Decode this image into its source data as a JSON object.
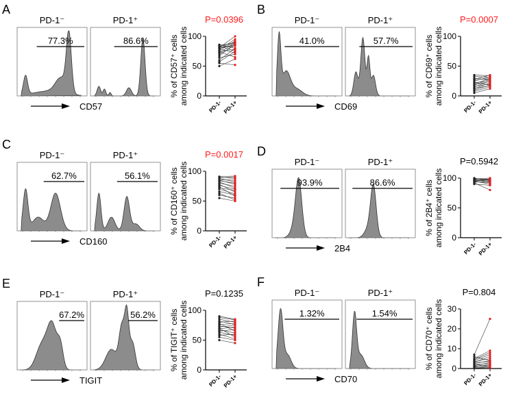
{
  "colors": {
    "significant": "#ff1a1a",
    "ns": "#000000",
    "pos_point": "#e41a1c",
    "neg_point": "#222222",
    "fill": "#8c8c8c"
  },
  "chart_data": [
    {
      "type": "paired-scatter",
      "letter": "A",
      "marker": "CD57",
      "groups": [
        "PD-1-",
        "PD-1+"
      ],
      "hist_titles": [
        "PD-1⁻",
        "PD-1⁺"
      ],
      "gate_pct": [
        "77.3%",
        "86.6%"
      ],
      "ylabel": [
        "% of CD57⁺ cells",
        "among indicated cells"
      ],
      "yticks": [
        0,
        50,
        100
      ],
      "ylim": [
        0,
        100
      ],
      "p_value": "P=0.0396",
      "significant": true,
      "hist": [
        [
          [
            0.12,
            0.03,
            0.28
          ],
          [
            0.45,
            0.22,
            0.07
          ],
          [
            0.63,
            0.08,
            0.22
          ],
          [
            0.74,
            0.035,
            0.85
          ]
        ],
        [
          [
            0.12,
            0.025,
            0.14
          ],
          [
            0.2,
            0.02,
            0.1
          ],
          [
            0.28,
            0.015,
            0.05
          ],
          [
            0.55,
            0.035,
            0.12
          ],
          [
            0.75,
            0.03,
            0.85
          ]
        ]
      ],
      "pairs": [
        [
          50,
          62
        ],
        [
          55,
          52
        ],
        [
          57,
          75
        ],
        [
          60,
          80
        ],
        [
          64,
          70
        ],
        [
          67,
          88
        ],
        [
          70,
          85
        ],
        [
          72,
          90
        ],
        [
          74,
          65
        ],
        [
          75,
          78
        ],
        [
          76,
          92
        ],
        [
          78,
          95
        ],
        [
          79,
          72
        ],
        [
          80,
          86
        ],
        [
          81,
          100
        ],
        [
          82,
          84
        ],
        [
          83,
          90
        ],
        [
          84,
          75
        ],
        [
          85,
          88
        ],
        [
          86,
          80
        ]
      ]
    },
    {
      "type": "paired-scatter",
      "letter": "B",
      "marker": "CD69",
      "groups": [
        "PD-1-",
        "PD-1+"
      ],
      "hist_titles": [
        "PD-1⁻",
        "PD-1⁺"
      ],
      "gate_pct": [
        "41.0%",
        "57.7%"
      ],
      "ylabel": [
        "% of CD69⁺ cells",
        "among indicated cells"
      ],
      "yticks": [
        0,
        50,
        100
      ],
      "ylim": [
        0,
        100
      ],
      "p_value": "P=0.0007",
      "significant": true,
      "hist": [
        [
          [
            0.1,
            0.025,
            0.85
          ],
          [
            0.2,
            0.06,
            0.35
          ],
          [
            0.35,
            0.08,
            0.1
          ]
        ],
        [
          [
            0.15,
            0.03,
            0.35
          ],
          [
            0.25,
            0.03,
            0.85
          ],
          [
            0.33,
            0.02,
            0.55
          ],
          [
            0.4,
            0.03,
            0.3
          ]
        ]
      ],
      "pairs": [
        [
          5,
          12
        ],
        [
          8,
          15
        ],
        [
          10,
          18
        ],
        [
          12,
          22
        ],
        [
          13,
          17
        ],
        [
          15,
          25
        ],
        [
          16,
          20
        ],
        [
          18,
          28
        ],
        [
          19,
          24
        ],
        [
          20,
          30
        ],
        [
          22,
          26
        ],
        [
          23,
          18
        ],
        [
          25,
          32
        ],
        [
          27,
          29
        ],
        [
          28,
          35
        ],
        [
          30,
          27
        ],
        [
          33,
          31
        ],
        [
          35,
          34
        ]
      ]
    },
    {
      "type": "paired-scatter",
      "letter": "C",
      "marker": "CD160",
      "groups": [
        "PD-1-",
        "PD-1+"
      ],
      "hist_titles": [
        "PD-1⁻",
        "PD-1⁺"
      ],
      "gate_pct": [
        "62.7%",
        "56.1%"
      ],
      "ylabel": [
        "% of CD160⁺ cells",
        "among indicated cells"
      ],
      "yticks": [
        0,
        50,
        100
      ],
      "ylim": [
        0,
        100
      ],
      "p_value": "P=0.0017",
      "significant": true,
      "hist": [
        [
          [
            0.12,
            0.035,
            0.6
          ],
          [
            0.3,
            0.08,
            0.2
          ],
          [
            0.55,
            0.07,
            0.55
          ]
        ],
        [
          [
            0.12,
            0.03,
            0.55
          ],
          [
            0.3,
            0.05,
            0.2
          ],
          [
            0.52,
            0.04,
            0.5
          ],
          [
            0.65,
            0.05,
            0.1
          ]
        ]
      ],
      "pairs": [
        [
          55,
          50
        ],
        [
          60,
          55
        ],
        [
          63,
          52
        ],
        [
          66,
          60
        ],
        [
          70,
          62
        ],
        [
          72,
          68
        ],
        [
          74,
          58
        ],
        [
          76,
          70
        ],
        [
          78,
          65
        ],
        [
          80,
          75
        ],
        [
          82,
          72
        ],
        [
          84,
          80
        ],
        [
          85,
          78
        ],
        [
          86,
          85
        ],
        [
          88,
          82
        ],
        [
          89,
          90
        ],
        [
          90,
          88
        ],
        [
          91,
          92
        ]
      ]
    },
    {
      "type": "paired-scatter",
      "letter": "D",
      "marker": "2B4",
      "groups": [
        "PD-1-",
        "PD-1+"
      ],
      "hist_titles": [
        "PD-1⁻",
        "PD-1⁺"
      ],
      "gate_pct": [
        "93.9%",
        "86.6%"
      ],
      "ylabel": [
        "% of 2B4⁺ cells",
        "among indicated cells"
      ],
      "yticks": [
        0,
        50,
        100
      ],
      "ylim": [
        0,
        100
      ],
      "p_value": "P=0.5942",
      "significant": false,
      "hist": [
        [
          [
            0.38,
            0.045,
            0.85
          ],
          [
            0.3,
            0.05,
            0.1
          ]
        ],
        [
          [
            0.4,
            0.04,
            0.75
          ],
          [
            0.32,
            0.05,
            0.12
          ]
        ]
      ],
      "pairs": [
        [
          90,
          88
        ],
        [
          92,
          80
        ],
        [
          93,
          95
        ],
        [
          94,
          92
        ],
        [
          95,
          97
        ],
        [
          95,
          90
        ],
        [
          96,
          98
        ],
        [
          97,
          94
        ],
        [
          97,
          99
        ],
        [
          98,
          96
        ],
        [
          99,
          100
        ],
        [
          99,
          93
        ],
        [
          100,
          97
        ]
      ]
    },
    {
      "type": "paired-scatter",
      "letter": "E",
      "marker": "TIGIT",
      "groups": [
        "PD-1-",
        "PD-1+"
      ],
      "hist_titles": [
        "PD-1⁻",
        "PD-1⁺"
      ],
      "gate_pct": [
        "67.2%",
        "56.2%"
      ],
      "ylabel": [
        "% of TIGIT⁺ cells",
        "among indicated cells"
      ],
      "yticks": [
        0,
        50,
        100
      ],
      "ylim": [
        0,
        100
      ],
      "p_value": "P=0.1235",
      "significant": false,
      "hist": [
        [
          [
            0.35,
            0.08,
            0.35
          ],
          [
            0.5,
            0.07,
            0.65
          ],
          [
            0.62,
            0.04,
            0.3
          ]
        ],
        [
          [
            0.3,
            0.08,
            0.3
          ],
          [
            0.45,
            0.04,
            0.6
          ],
          [
            0.52,
            0.03,
            0.75
          ],
          [
            0.6,
            0.04,
            0.4
          ]
        ]
      ],
      "pairs": [
        [
          50,
          45
        ],
        [
          55,
          50
        ],
        [
          58,
          60
        ],
        [
          60,
          52
        ],
        [
          63,
          58
        ],
        [
          65,
          68
        ],
        [
          67,
          62
        ],
        [
          69,
          72
        ],
        [
          70,
          55
        ],
        [
          72,
          75
        ],
        [
          74,
          70
        ],
        [
          76,
          78
        ],
        [
          78,
          65
        ],
        [
          80,
          82
        ],
        [
          82,
          76
        ],
        [
          85,
          80
        ],
        [
          88,
          84
        ],
        [
          90,
          85
        ]
      ]
    },
    {
      "type": "paired-scatter",
      "letter": "F",
      "marker": "CD70",
      "groups": [
        "PD-1-",
        "PD-1+"
      ],
      "hist_titles": [
        "PD-1⁻",
        "PD-1⁺"
      ],
      "gate_pct": [
        "1.32%",
        "1.54%"
      ],
      "ylabel": [
        "% of CD70⁺ cells",
        "among indicated cells"
      ],
      "yticks": [
        0,
        10,
        20,
        30
      ],
      "ylim": [
        0,
        30
      ],
      "p_value": "P=0.804",
      "significant": false,
      "hist": [
        [
          [
            0.12,
            0.035,
            0.85
          ],
          [
            0.22,
            0.05,
            0.2
          ]
        ],
        [
          [
            0.13,
            0.03,
            0.8
          ],
          [
            0.22,
            0.05,
            0.2
          ]
        ]
      ],
      "pairs": [
        [
          0.2,
          0.5
        ],
        [
          0.5,
          1
        ],
        [
          0.8,
          0.3
        ],
        [
          1,
          2
        ],
        [
          1.2,
          1.5
        ],
        [
          1.5,
          3
        ],
        [
          2,
          2.5
        ],
        [
          2.2,
          0.8
        ],
        [
          2.5,
          4
        ],
        [
          3,
          3.5
        ],
        [
          3.2,
          6
        ],
        [
          3.5,
          5
        ],
        [
          4,
          7
        ],
        [
          4.5,
          8
        ],
        [
          5,
          9
        ],
        [
          6,
          4
        ],
        [
          7,
          25
        ]
      ]
    }
  ]
}
